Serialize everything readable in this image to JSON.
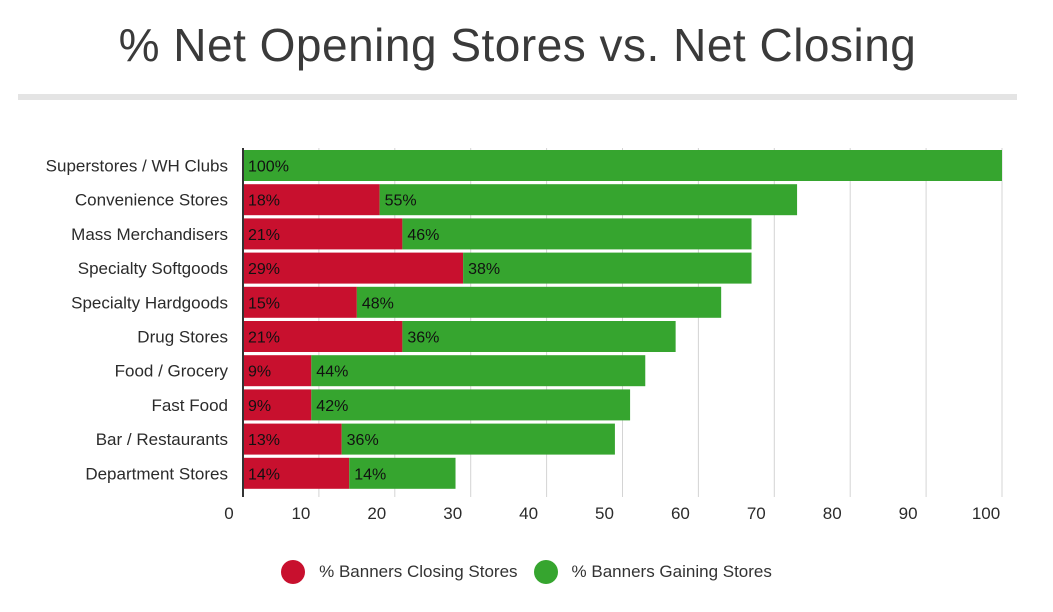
{
  "chart_data": {
    "type": "bar",
    "orientation": "horizontal",
    "stacked": true,
    "title": "% Net Opening Stores vs. Net Closing",
    "categories": [
      "Superstores / WH Clubs",
      "Convenience Stores",
      "Mass Merchandisers",
      "Specialty Softgoods",
      "Specialty Hardgoods",
      "Drug Stores",
      "Food / Grocery",
      "Fast Food",
      "Bar / Restaurants",
      "Department Stores"
    ],
    "series": [
      {
        "name": "% Banners Closing Stores",
        "color": "#c8102e",
        "values": [
          0,
          18,
          21,
          29,
          15,
          21,
          9,
          9,
          13,
          14
        ],
        "labels": [
          "",
          "18%",
          "21%",
          "29%",
          "15%",
          "21%",
          "9%",
          "9%",
          "13%",
          "14%"
        ]
      },
      {
        "name": "% Banners Gaining Stores",
        "color": "#36a52f",
        "values": [
          100,
          55,
          46,
          38,
          48,
          36,
          44,
          42,
          36,
          14
        ],
        "labels": [
          "100%",
          "55%",
          "46%",
          "38%",
          "48%",
          "36%",
          "44%",
          "42%",
          "36%",
          "14%"
        ]
      }
    ],
    "xlim": [
      0,
      100
    ],
    "xticks": [
      0,
      10,
      20,
      30,
      40,
      50,
      60,
      70,
      80,
      90,
      100
    ],
    "grid": "vertical",
    "legend": "bottom-center"
  }
}
